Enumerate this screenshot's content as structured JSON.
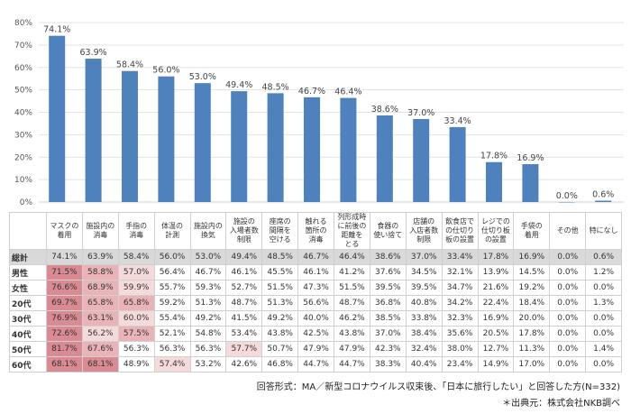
{
  "chart_data": {
    "type": "bar",
    "categories": [
      "マスクの着用",
      "施設内の消毒",
      "手指の消毒",
      "体温の計測",
      "施設内の換気",
      "施設の入場者数制限",
      "座席の間隔を空ける",
      "触れる箇所の消毒",
      "列形成時に前後の距離をとる",
      "食器の使い捨て",
      "店舗の入店者数制限",
      "飲食店での仕切り板の設置",
      "レジでの仕切り板の設置",
      "手袋の着用",
      "その他",
      "特になし"
    ],
    "values": [
      74.1,
      63.9,
      58.4,
      56.0,
      53.0,
      49.4,
      48.5,
      46.7,
      46.4,
      38.6,
      37.0,
      33.4,
      17.8,
      16.9,
      0.0,
      0.6
    ],
    "data_labels": [
      "74.1%",
      "63.9%",
      "58.4%",
      "56.0%",
      "53.0%",
      "49.4%",
      "48.5%",
      "46.7%",
      "46.4%",
      "38.6%",
      "37.0%",
      "33.4%",
      "17.8%",
      "16.9%",
      "0.0%",
      "0.6%"
    ],
    "yticks": [
      "0%",
      "10%",
      "20%",
      "30%",
      "40%",
      "50%",
      "60%",
      "70%",
      "80%"
    ],
    "ylim": [
      0,
      80
    ],
    "grid": true,
    "bar_color": "#4f81bd"
  },
  "table": {
    "headers": [
      "マスクの\n着用",
      "施設内の\n消毒",
      "手指の\n消毒",
      "体温の\n計測",
      "施設内の\n換気",
      "施設の\n入場者数\n制限",
      "座席の\n間隔を\n空ける",
      "触れる\n箇所の\n消毒",
      "列形成時\nに前後の\n距離を\nとる",
      "食器の\n使い捨て",
      "店舗の\n入店者数\n制限",
      "飲食店で\nの仕切り\n板の設置",
      "レジでの\n仕切り板\nの設置",
      "手袋の\n着用",
      "その他",
      "特になし"
    ],
    "rows": [
      {
        "label": "総計",
        "values": [
          "74.1%",
          "63.9%",
          "58.4%",
          "56.0%",
          "53.0%",
          "49.4%",
          "48.5%",
          "46.7%",
          "46.4%",
          "38.6%",
          "37.0%",
          "33.4%",
          "17.8%",
          "16.9%",
          "0.0%",
          "0.6%"
        ],
        "heat": []
      },
      {
        "label": "男性",
        "values": [
          "71.5%",
          "58.8%",
          "57.0%",
          "56.4%",
          "46.7%",
          "46.1%",
          "45.5%",
          "46.1%",
          "41.2%",
          "37.6%",
          "34.5%",
          "32.1%",
          "13.9%",
          "14.5%",
          "0.0%",
          "1.2%"
        ],
        "heat": [
          3,
          2,
          1
        ]
      },
      {
        "label": "女性",
        "values": [
          "76.6%",
          "68.9%",
          "59.9%",
          "55.7%",
          "59.3%",
          "52.7%",
          "51.5%",
          "47.3%",
          "51.5%",
          "39.5%",
          "39.5%",
          "34.7%",
          "21.6%",
          "19.2%",
          "0.0%",
          "0.0%"
        ],
        "heat": [
          3,
          2,
          1
        ]
      },
      {
        "label": "20代",
        "values": [
          "69.7%",
          "65.8%",
          "65.8%",
          "59.2%",
          "51.3%",
          "48.7%",
          "51.3%",
          "56.6%",
          "48.7%",
          "36.8%",
          "40.8%",
          "34.2%",
          "22.4%",
          "18.4%",
          "0.0%",
          "1.3%"
        ],
        "heat": [
          3,
          2,
          2
        ]
      },
      {
        "label": "30代",
        "values": [
          "76.9%",
          "63.1%",
          "60.0%",
          "55.4%",
          "49.2%",
          "41.5%",
          "49.2%",
          "40.0%",
          "46.2%",
          "38.5%",
          "33.8%",
          "32.3%",
          "16.9%",
          "20.0%",
          "0.0%",
          "0.0%"
        ],
        "heat": [
          3,
          2,
          1
        ]
      },
      {
        "label": "40代",
        "values": [
          "72.6%",
          "56.2%",
          "57.5%",
          "52.1%",
          "54.8%",
          "53.4%",
          "43.8%",
          "42.5%",
          "43.8%",
          "37.0%",
          "38.4%",
          "35.6%",
          "20.5%",
          "17.8%",
          "0.0%",
          "0.0%"
        ],
        "heat": [
          3,
          1,
          2
        ]
      },
      {
        "label": "50代",
        "values": [
          "81.7%",
          "67.6%",
          "56.3%",
          "56.3%",
          "56.3%",
          "57.7%",
          "50.7%",
          "47.9%",
          "47.9%",
          "42.3%",
          "32.4%",
          "38.0%",
          "12.7%",
          "11.3%",
          "0.0%",
          "1.4%"
        ],
        "heat": [
          3,
          2,
          0,
          0,
          0,
          1
        ]
      },
      {
        "label": "60代",
        "values": [
          "68.1%",
          "68.1%",
          "48.9%",
          "57.4%",
          "53.2%",
          "42.6%",
          "46.8%",
          "44.7%",
          "44.7%",
          "38.3%",
          "40.4%",
          "23.4%",
          "14.9%",
          "17.0%",
          "0.0%",
          "0.0%"
        ],
        "heat": [
          3,
          3,
          0,
          1
        ]
      }
    ]
  },
  "footer": {
    "format": "回答形式：MA／新型コロナウイルス収束後、「日本に旅行したい」と回答した方(N=332)",
    "source": "＊出典元：株式会社NKB調べ"
  }
}
